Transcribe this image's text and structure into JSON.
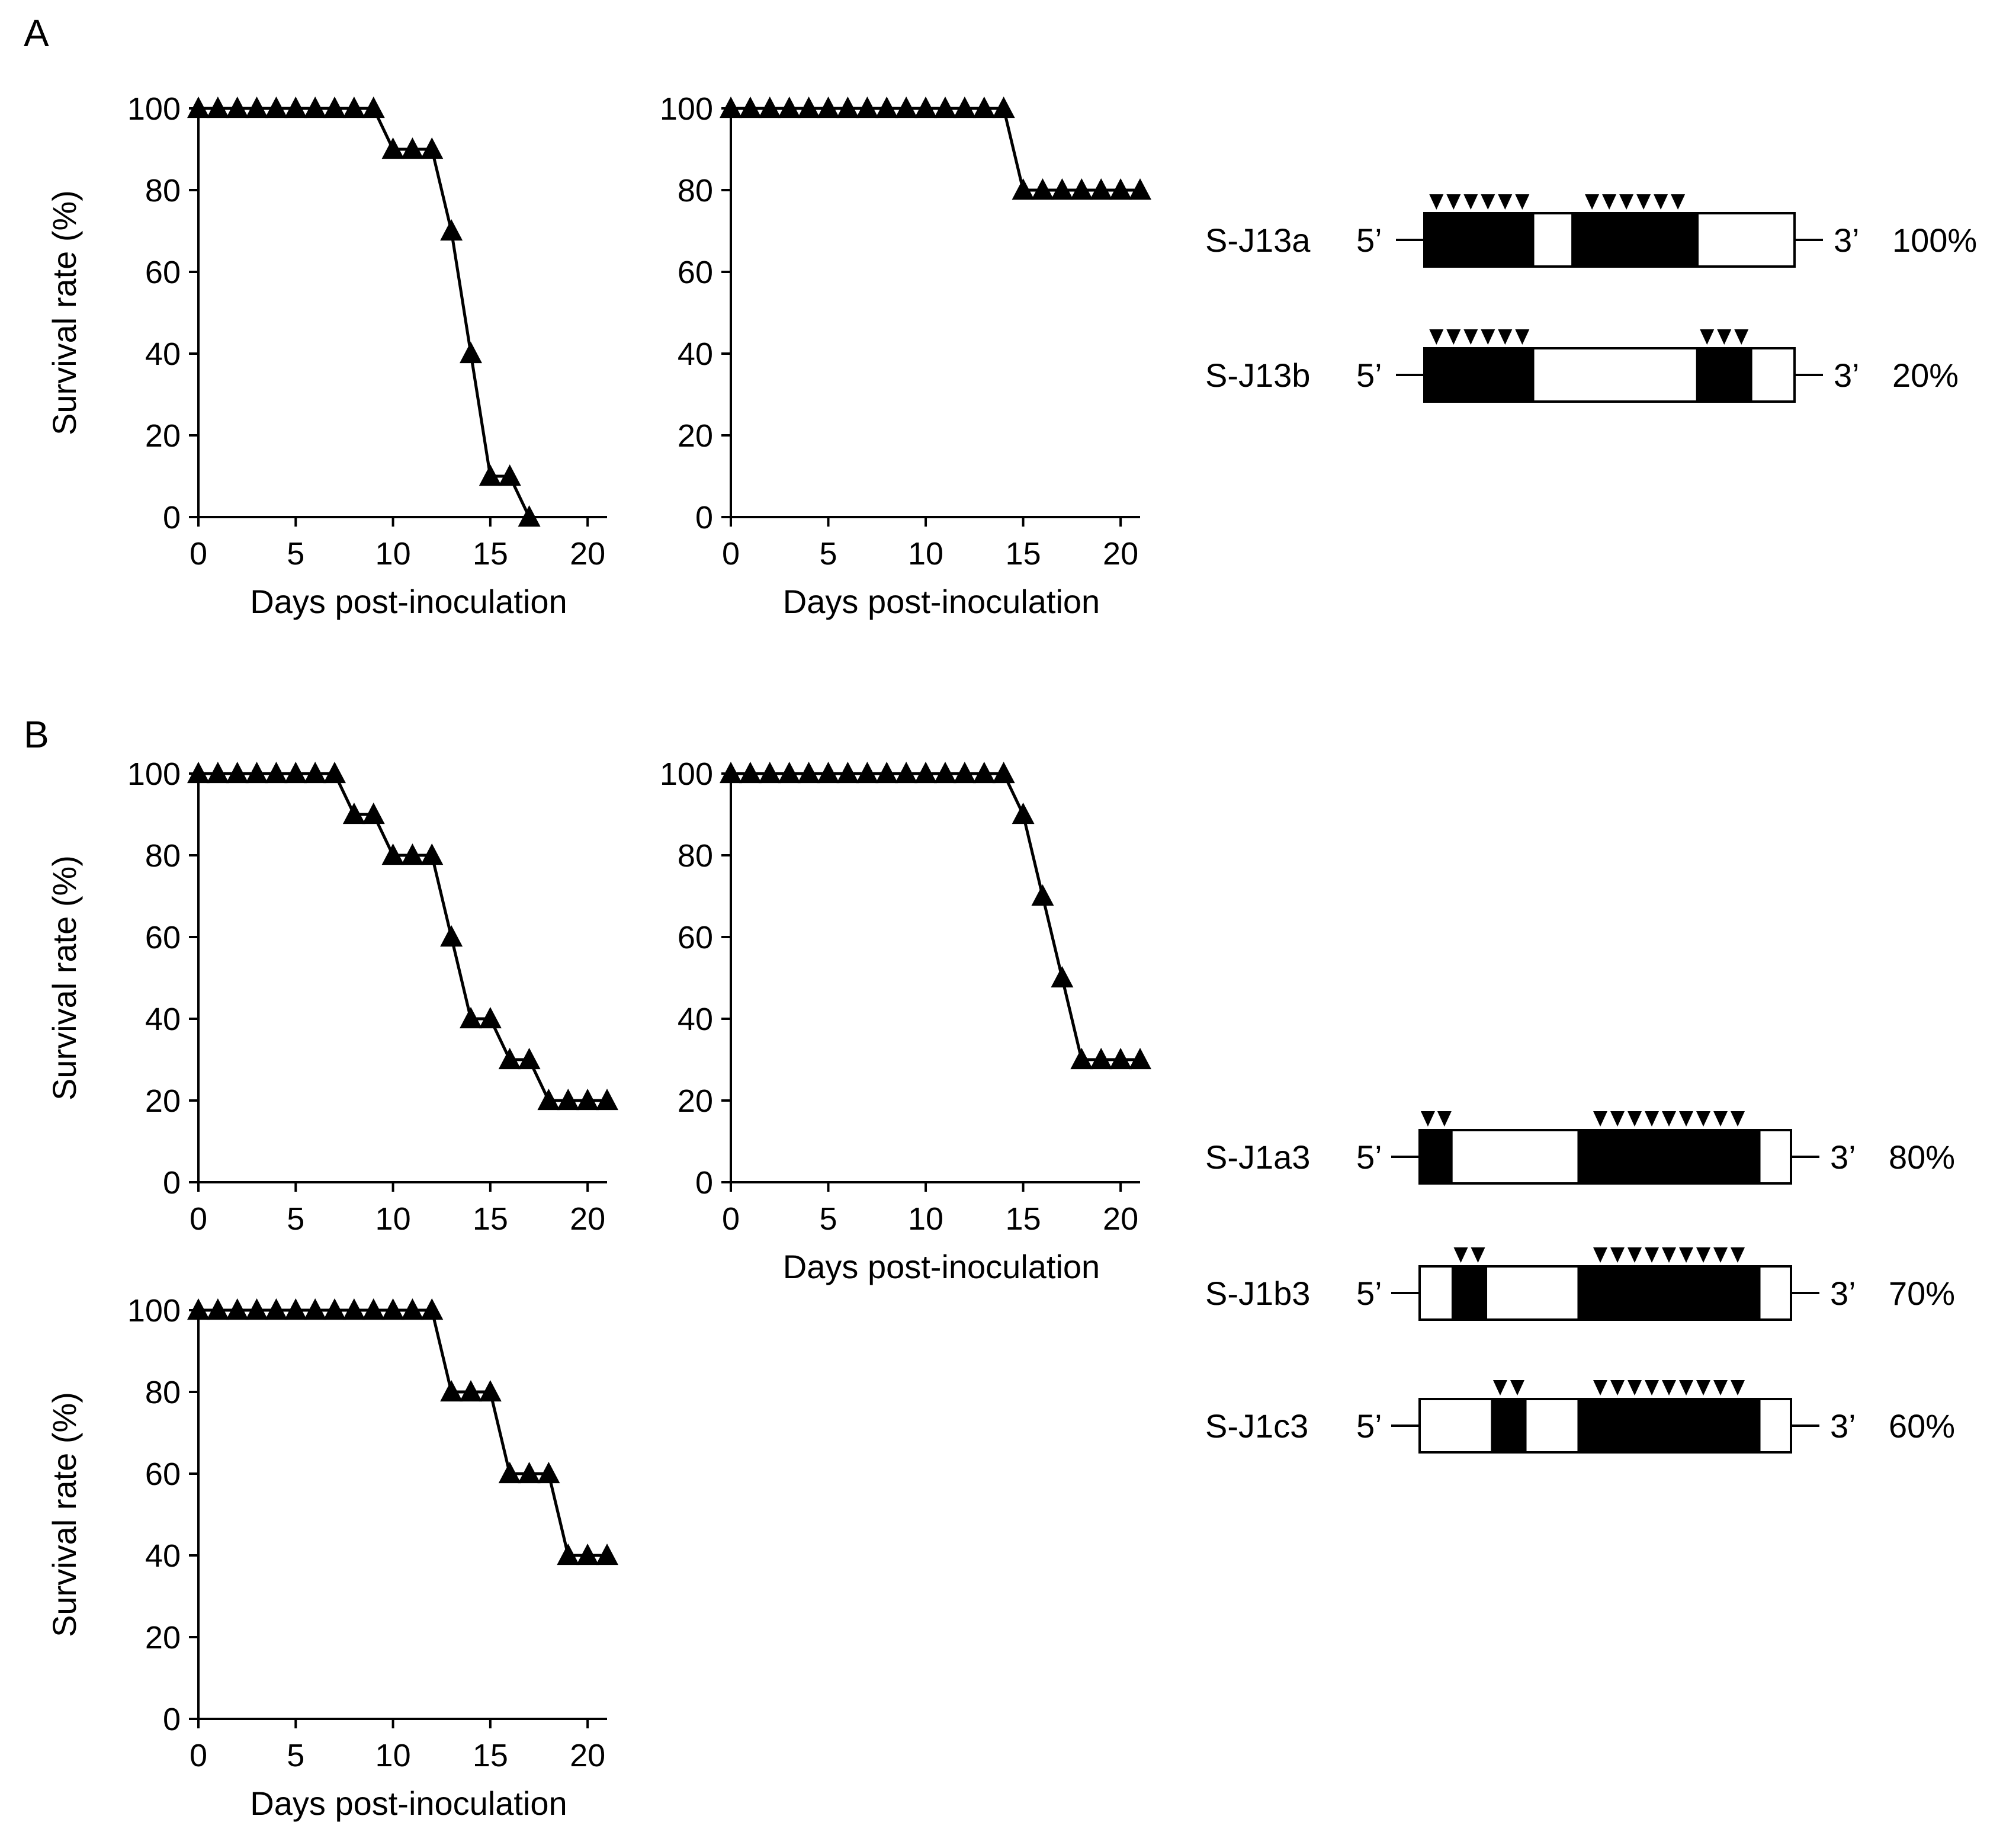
{
  "panels": [
    {
      "label": "A"
    },
    {
      "label": "B"
    }
  ],
  "chart_data": [
    {
      "type": "line",
      "panel": "A",
      "marker": "triangle-up",
      "xlabel": "Days post-inoculation",
      "ylabel": "Survival rate (%)",
      "xlim": [
        0,
        21
      ],
      "ylim": [
        0,
        100
      ],
      "xticks": [
        0,
        5,
        10,
        15,
        20
      ],
      "yticks": [
        0,
        20,
        40,
        60,
        80,
        100
      ],
      "x": [
        0,
        1,
        2,
        3,
        4,
        5,
        6,
        7,
        8,
        9,
        10,
        11,
        12,
        13,
        14,
        15,
        16,
        17
      ],
      "y": [
        100,
        100,
        100,
        100,
        100,
        100,
        100,
        100,
        100,
        100,
        90,
        90,
        90,
        70,
        40,
        10,
        10,
        0
      ]
    },
    {
      "type": "line",
      "panel": "A",
      "marker": "triangle-up",
      "xlabel": "Days post-inoculation",
      "ylabel": "",
      "xlim": [
        0,
        21
      ],
      "ylim": [
        0,
        100
      ],
      "xticks": [
        0,
        5,
        10,
        15,
        20
      ],
      "yticks": [
        0,
        20,
        40,
        60,
        80,
        100
      ],
      "x": [
        0,
        1,
        2,
        3,
        4,
        5,
        6,
        7,
        8,
        9,
        10,
        11,
        12,
        13,
        14,
        15,
        16,
        17,
        18,
        19,
        20,
        21
      ],
      "y": [
        100,
        100,
        100,
        100,
        100,
        100,
        100,
        100,
        100,
        100,
        100,
        100,
        100,
        100,
        100,
        80,
        80,
        80,
        80,
        80,
        80,
        80
      ]
    },
    {
      "type": "line",
      "panel": "B",
      "marker": "triangle-up",
      "xlabel": "",
      "ylabel": "Survival rate (%)",
      "xlim": [
        0,
        21
      ],
      "ylim": [
        0,
        100
      ],
      "xticks": [
        0,
        5,
        10,
        15,
        20
      ],
      "yticks": [
        0,
        20,
        40,
        60,
        80,
        100
      ],
      "x": [
        0,
        1,
        2,
        3,
        4,
        5,
        6,
        7,
        8,
        9,
        10,
        11,
        12,
        13,
        14,
        15,
        16,
        17,
        18,
        19,
        20,
        21
      ],
      "y": [
        100,
        100,
        100,
        100,
        100,
        100,
        100,
        100,
        90,
        90,
        80,
        80,
        80,
        60,
        40,
        40,
        30,
        30,
        20,
        20,
        20,
        20
      ]
    },
    {
      "type": "line",
      "panel": "B",
      "marker": "triangle-up",
      "xlabel": "Days post-inoculation",
      "ylabel": "",
      "xlim": [
        0,
        21
      ],
      "ylim": [
        0,
        100
      ],
      "xticks": [
        0,
        5,
        10,
        15,
        20
      ],
      "yticks": [
        0,
        20,
        40,
        60,
        80,
        100
      ],
      "x": [
        0,
        1,
        2,
        3,
        4,
        5,
        6,
        7,
        8,
        9,
        10,
        11,
        12,
        13,
        14,
        15,
        16,
        17,
        18,
        19,
        20,
        21
      ],
      "y": [
        100,
        100,
        100,
        100,
        100,
        100,
        100,
        100,
        100,
        100,
        100,
        100,
        100,
        100,
        100,
        90,
        70,
        50,
        30,
        30,
        30,
        30
      ]
    },
    {
      "type": "line",
      "panel": "B",
      "marker": "triangle-up",
      "xlabel": "Days post-inoculation",
      "ylabel": "Survival rate (%)",
      "xlim": [
        0,
        21
      ],
      "ylim": [
        0,
        100
      ],
      "xticks": [
        0,
        5,
        10,
        15,
        20
      ],
      "yticks": [
        0,
        20,
        40,
        60,
        80,
        100
      ],
      "x": [
        0,
        1,
        2,
        3,
        4,
        5,
        6,
        7,
        8,
        9,
        10,
        11,
        12,
        13,
        14,
        15,
        16,
        17,
        18,
        19,
        20,
        21
      ],
      "y": [
        100,
        100,
        100,
        100,
        100,
        100,
        100,
        100,
        100,
        100,
        100,
        100,
        100,
        80,
        80,
        80,
        60,
        60,
        60,
        40,
        40,
        40
      ]
    }
  ],
  "constructs": [
    {
      "panel": "A",
      "name": "S-J13a",
      "five_prime": "5’",
      "three_prime": "3’",
      "survival": "100%",
      "segments": [
        {
          "fill": "black",
          "start": 0.0,
          "end": 0.297,
          "markers": 6
        },
        {
          "fill": "white",
          "start": 0.297,
          "end": 0.397,
          "markers": 0
        },
        {
          "fill": "black",
          "start": 0.397,
          "end": 0.741,
          "markers": 6
        },
        {
          "fill": "white",
          "start": 0.741,
          "end": 1.0,
          "markers": 0
        }
      ]
    },
    {
      "panel": "A",
      "name": "S-J13b",
      "five_prime": "5’",
      "three_prime": "3’",
      "survival": "20%",
      "segments": [
        {
          "fill": "black",
          "start": 0.0,
          "end": 0.297,
          "markers": 6
        },
        {
          "fill": "white",
          "start": 0.297,
          "end": 0.734,
          "markers": 0
        },
        {
          "fill": "black",
          "start": 0.734,
          "end": 0.886,
          "markers": 3
        },
        {
          "fill": "white",
          "start": 0.886,
          "end": 1.0,
          "markers": 0
        }
      ]
    },
    {
      "panel": "B",
      "name": "S-J1a3",
      "five_prime": "5’",
      "three_prime": "3’",
      "survival": "80%",
      "segments": [
        {
          "fill": "black",
          "start": 0.0,
          "end": 0.089,
          "markers": 2
        },
        {
          "fill": "white",
          "start": 0.089,
          "end": 0.425,
          "markers": 0
        },
        {
          "fill": "black",
          "start": 0.425,
          "end": 0.918,
          "markers": 9
        },
        {
          "fill": "white",
          "start": 0.918,
          "end": 1.0,
          "markers": 0
        }
      ]
    },
    {
      "panel": "B",
      "name": "S-J1b3",
      "five_prime": "5’",
      "three_prime": "3’",
      "survival": "70%",
      "segments": [
        {
          "fill": "white",
          "start": 0.0,
          "end": 0.086,
          "markers": 0
        },
        {
          "fill": "black",
          "start": 0.086,
          "end": 0.182,
          "markers": 2
        },
        {
          "fill": "white",
          "start": 0.182,
          "end": 0.425,
          "markers": 0
        },
        {
          "fill": "black",
          "start": 0.425,
          "end": 0.918,
          "markers": 9
        },
        {
          "fill": "white",
          "start": 0.918,
          "end": 1.0,
          "markers": 0
        }
      ]
    },
    {
      "panel": "B",
      "name": "S-J1c3",
      "five_prime": "5’",
      "three_prime": "3’",
      "survival": "60%",
      "segments": [
        {
          "fill": "white",
          "start": 0.0,
          "end": 0.192,
          "markers": 0
        },
        {
          "fill": "black",
          "start": 0.192,
          "end": 0.288,
          "markers": 2
        },
        {
          "fill": "white",
          "start": 0.288,
          "end": 0.425,
          "markers": 0
        },
        {
          "fill": "black",
          "start": 0.425,
          "end": 0.918,
          "markers": 9
        },
        {
          "fill": "white",
          "start": 0.918,
          "end": 1.0,
          "markers": 0
        }
      ]
    }
  ],
  "colors": {
    "ink": "#000000",
    "background": "#ffffff"
  }
}
